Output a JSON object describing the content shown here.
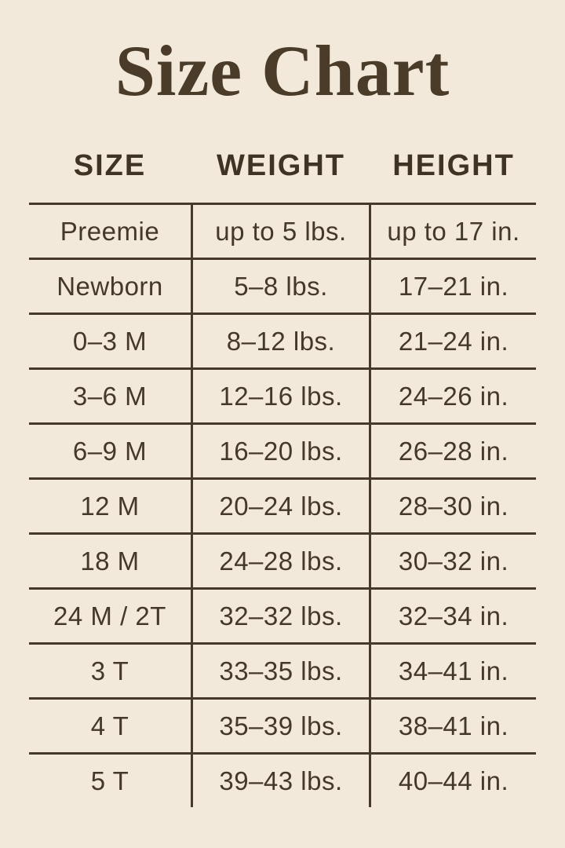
{
  "title": "Size Chart",
  "colors": {
    "background": "#f2e9da",
    "text": "#44382a",
    "line": "#46392a",
    "title": "#4a3c29"
  },
  "chart_data": {
    "type": "table",
    "title": "Size Chart",
    "columns": [
      "SIZE",
      "WEIGHT",
      "HEIGHT"
    ],
    "rows": [
      [
        "Preemie",
        "up to 5 lbs.",
        "up to 17 in."
      ],
      [
        "Newborn",
        "5–8 lbs.",
        "17–21 in."
      ],
      [
        "0–3 M",
        "8–12 lbs.",
        "21–24 in."
      ],
      [
        "3–6 M",
        "12–16 lbs.",
        "24–26 in."
      ],
      [
        "6–9 M",
        "16–20 lbs.",
        "26–28 in."
      ],
      [
        "12 M",
        "20–24 lbs.",
        "28–30 in."
      ],
      [
        "18 M",
        "24–28 lbs.",
        "30–32 in."
      ],
      [
        "24 M / 2T",
        "32–32 lbs.",
        "32–34 in."
      ],
      [
        "3 T",
        "33–35 lbs.",
        "34–41 in."
      ],
      [
        "4 T",
        "35–39 lbs.",
        "38–41 in."
      ],
      [
        "5 T",
        "39–43 lbs.",
        "40–44 in."
      ]
    ]
  }
}
